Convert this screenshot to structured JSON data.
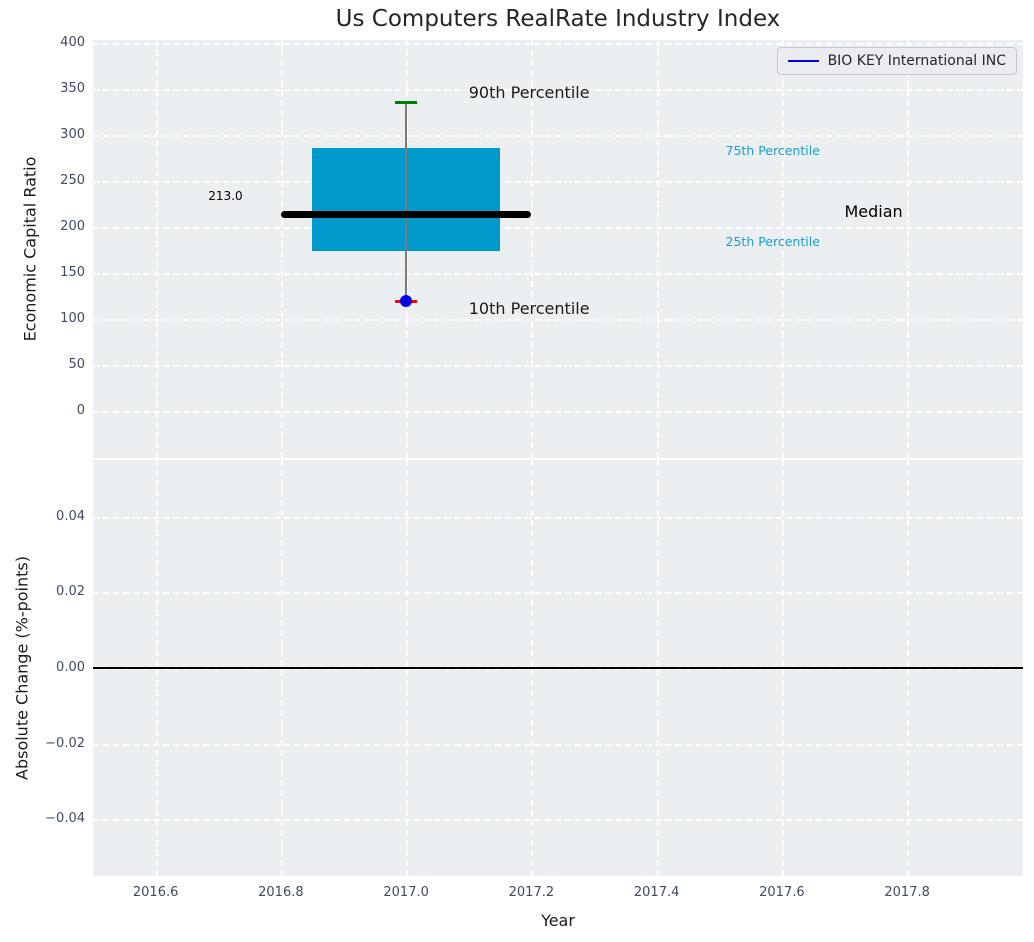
{
  "chart_data": {
    "type": "boxplot",
    "title": "Us Computers RealRate Industry Index",
    "legend": {
      "label": "BIO KEY International INC",
      "line_color": "#0000e0"
    },
    "colors": {
      "panel_bg": "#eceff1",
      "grid": "#ffffff",
      "box_fill": "#0099cc",
      "median": "#000000",
      "whisker": "#7a7a7a",
      "cap_top": "#008000",
      "cap_bottom": "#ff0000",
      "company_dot": "#0000e0",
      "tick_text": "#3e4a63",
      "cyan_text": "#1a9fcc",
      "black_text": "#1a1a1a",
      "zero_line": "#000000"
    },
    "x_axis": {
      "label": "Year",
      "xlim": [
        2016.5,
        2017.985
      ],
      "xticks": [
        {
          "v": 2016.6,
          "label": "2016.6"
        },
        {
          "v": 2016.8,
          "label": "2016.8"
        },
        {
          "v": 2017.0,
          "label": "2017.0"
        },
        {
          "v": 2017.2,
          "label": "2017.2"
        },
        {
          "v": 2017.4,
          "label": "2017.4"
        },
        {
          "v": 2017.6,
          "label": "2017.6"
        },
        {
          "v": 2017.8,
          "label": "2017.8"
        }
      ]
    },
    "top_panel": {
      "ylabel": "Economic Capital Ratio",
      "ylim": [
        -51,
        403
      ],
      "yticks": [
        {
          "v": 400,
          "label": "400"
        },
        {
          "v": 350,
          "label": "350"
        },
        {
          "v": 300,
          "label": "300"
        },
        {
          "v": 250,
          "label": "250"
        },
        {
          "v": 200,
          "label": "200"
        },
        {
          "v": 150,
          "label": "150"
        },
        {
          "v": 100,
          "label": "100"
        },
        {
          "v": 50,
          "label": "50"
        },
        {
          "v": 0,
          "label": "0"
        }
      ],
      "box": {
        "x": 2017.0,
        "q1": 174,
        "median": 213,
        "q3": 286,
        "p10": 119,
        "p90": 335,
        "company_value": 119,
        "box_halfwidth_years": 0.15,
        "median_halfwidth_years": 0.2,
        "cap_halfwidth_years": 0.018
      },
      "annotations": [
        {
          "text": "90th Percentile",
          "x": 2017.1,
          "y": 344,
          "color": "#1a1a1a",
          "size": 16
        },
        {
          "text": "75th Percentile",
          "x": 2017.51,
          "y": 281,
          "color": "#1a9fcc",
          "size": 12.5
        },
        {
          "text": "Median",
          "x": 2017.7,
          "y": 214,
          "color": "#000000",
          "size": 16
        },
        {
          "text": "25th Percentile",
          "x": 2017.51,
          "y": 183,
          "color": "#1a9fcc",
          "size": 12.5
        },
        {
          "text": "10th Percentile",
          "x": 2017.1,
          "y": 109,
          "color": "#1a1a1a",
          "size": 16
        },
        {
          "text": "213.0",
          "x": 2016.684,
          "y": 232,
          "color": "#000000",
          "size": 12
        }
      ]
    },
    "bottom_panel": {
      "ylabel": "Absolute Change (%-points)",
      "ylim": [
        -0.055,
        0.055
      ],
      "yticks": [
        {
          "v": 0.04,
          "label": "0.04"
        },
        {
          "v": 0.02,
          "label": "0.02"
        },
        {
          "v": 0.0,
          "label": "0.00"
        },
        {
          "v": -0.02,
          "label": "−0.02"
        },
        {
          "v": -0.04,
          "label": "−0.04"
        }
      ],
      "zero_line": 0.0
    }
  }
}
